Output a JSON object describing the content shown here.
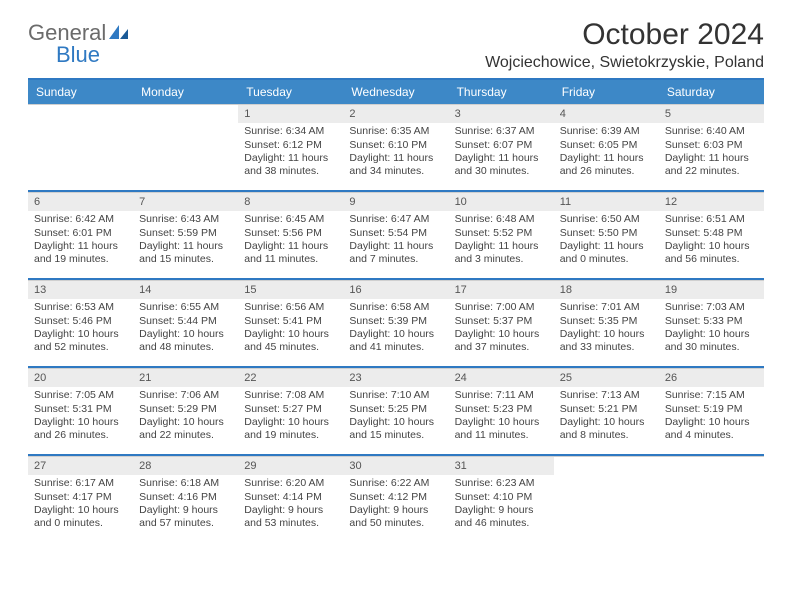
{
  "brand": {
    "general": "General",
    "blue": "Blue"
  },
  "header": {
    "month_title": "October 2024",
    "location": "Wojciechowice, Swietokrzyskie, Poland"
  },
  "colors": {
    "accent": "#3d88c7",
    "divider": "#2f79c2",
    "daynum_bg": "#ececec",
    "text": "#333333"
  },
  "weekdays": [
    "Sunday",
    "Monday",
    "Tuesday",
    "Wednesday",
    "Thursday",
    "Friday",
    "Saturday"
  ],
  "weeks": [
    [
      {
        "blank": true
      },
      {
        "blank": true
      },
      {
        "day": "1",
        "sunrise": "Sunrise: 6:34 AM",
        "sunset": "Sunset: 6:12 PM",
        "daylight": "Daylight: 11 hours and 38 minutes."
      },
      {
        "day": "2",
        "sunrise": "Sunrise: 6:35 AM",
        "sunset": "Sunset: 6:10 PM",
        "daylight": "Daylight: 11 hours and 34 minutes."
      },
      {
        "day": "3",
        "sunrise": "Sunrise: 6:37 AM",
        "sunset": "Sunset: 6:07 PM",
        "daylight": "Daylight: 11 hours and 30 minutes."
      },
      {
        "day": "4",
        "sunrise": "Sunrise: 6:39 AM",
        "sunset": "Sunset: 6:05 PM",
        "daylight": "Daylight: 11 hours and 26 minutes."
      },
      {
        "day": "5",
        "sunrise": "Sunrise: 6:40 AM",
        "sunset": "Sunset: 6:03 PM",
        "daylight": "Daylight: 11 hours and 22 minutes."
      }
    ],
    [
      {
        "day": "6",
        "sunrise": "Sunrise: 6:42 AM",
        "sunset": "Sunset: 6:01 PM",
        "daylight": "Daylight: 11 hours and 19 minutes."
      },
      {
        "day": "7",
        "sunrise": "Sunrise: 6:43 AM",
        "sunset": "Sunset: 5:59 PM",
        "daylight": "Daylight: 11 hours and 15 minutes."
      },
      {
        "day": "8",
        "sunrise": "Sunrise: 6:45 AM",
        "sunset": "Sunset: 5:56 PM",
        "daylight": "Daylight: 11 hours and 11 minutes."
      },
      {
        "day": "9",
        "sunrise": "Sunrise: 6:47 AM",
        "sunset": "Sunset: 5:54 PM",
        "daylight": "Daylight: 11 hours and 7 minutes."
      },
      {
        "day": "10",
        "sunrise": "Sunrise: 6:48 AM",
        "sunset": "Sunset: 5:52 PM",
        "daylight": "Daylight: 11 hours and 3 minutes."
      },
      {
        "day": "11",
        "sunrise": "Sunrise: 6:50 AM",
        "sunset": "Sunset: 5:50 PM",
        "daylight": "Daylight: 11 hours and 0 minutes."
      },
      {
        "day": "12",
        "sunrise": "Sunrise: 6:51 AM",
        "sunset": "Sunset: 5:48 PM",
        "daylight": "Daylight: 10 hours and 56 minutes."
      }
    ],
    [
      {
        "day": "13",
        "sunrise": "Sunrise: 6:53 AM",
        "sunset": "Sunset: 5:46 PM",
        "daylight": "Daylight: 10 hours and 52 minutes."
      },
      {
        "day": "14",
        "sunrise": "Sunrise: 6:55 AM",
        "sunset": "Sunset: 5:44 PM",
        "daylight": "Daylight: 10 hours and 48 minutes."
      },
      {
        "day": "15",
        "sunrise": "Sunrise: 6:56 AM",
        "sunset": "Sunset: 5:41 PM",
        "daylight": "Daylight: 10 hours and 45 minutes."
      },
      {
        "day": "16",
        "sunrise": "Sunrise: 6:58 AM",
        "sunset": "Sunset: 5:39 PM",
        "daylight": "Daylight: 10 hours and 41 minutes."
      },
      {
        "day": "17",
        "sunrise": "Sunrise: 7:00 AM",
        "sunset": "Sunset: 5:37 PM",
        "daylight": "Daylight: 10 hours and 37 minutes."
      },
      {
        "day": "18",
        "sunrise": "Sunrise: 7:01 AM",
        "sunset": "Sunset: 5:35 PM",
        "daylight": "Daylight: 10 hours and 33 minutes."
      },
      {
        "day": "19",
        "sunrise": "Sunrise: 7:03 AM",
        "sunset": "Sunset: 5:33 PM",
        "daylight": "Daylight: 10 hours and 30 minutes."
      }
    ],
    [
      {
        "day": "20",
        "sunrise": "Sunrise: 7:05 AM",
        "sunset": "Sunset: 5:31 PM",
        "daylight": "Daylight: 10 hours and 26 minutes."
      },
      {
        "day": "21",
        "sunrise": "Sunrise: 7:06 AM",
        "sunset": "Sunset: 5:29 PM",
        "daylight": "Daylight: 10 hours and 22 minutes."
      },
      {
        "day": "22",
        "sunrise": "Sunrise: 7:08 AM",
        "sunset": "Sunset: 5:27 PM",
        "daylight": "Daylight: 10 hours and 19 minutes."
      },
      {
        "day": "23",
        "sunrise": "Sunrise: 7:10 AM",
        "sunset": "Sunset: 5:25 PM",
        "daylight": "Daylight: 10 hours and 15 minutes."
      },
      {
        "day": "24",
        "sunrise": "Sunrise: 7:11 AM",
        "sunset": "Sunset: 5:23 PM",
        "daylight": "Daylight: 10 hours and 11 minutes."
      },
      {
        "day": "25",
        "sunrise": "Sunrise: 7:13 AM",
        "sunset": "Sunset: 5:21 PM",
        "daylight": "Daylight: 10 hours and 8 minutes."
      },
      {
        "day": "26",
        "sunrise": "Sunrise: 7:15 AM",
        "sunset": "Sunset: 5:19 PM",
        "daylight": "Daylight: 10 hours and 4 minutes."
      }
    ],
    [
      {
        "day": "27",
        "sunrise": "Sunrise: 6:17 AM",
        "sunset": "Sunset: 4:17 PM",
        "daylight": "Daylight: 10 hours and 0 minutes."
      },
      {
        "day": "28",
        "sunrise": "Sunrise: 6:18 AM",
        "sunset": "Sunset: 4:16 PM",
        "daylight": "Daylight: 9 hours and 57 minutes."
      },
      {
        "day": "29",
        "sunrise": "Sunrise: 6:20 AM",
        "sunset": "Sunset: 4:14 PM",
        "daylight": "Daylight: 9 hours and 53 minutes."
      },
      {
        "day": "30",
        "sunrise": "Sunrise: 6:22 AM",
        "sunset": "Sunset: 4:12 PM",
        "daylight": "Daylight: 9 hours and 50 minutes."
      },
      {
        "day": "31",
        "sunrise": "Sunrise: 6:23 AM",
        "sunset": "Sunset: 4:10 PM",
        "daylight": "Daylight: 9 hours and 46 minutes."
      },
      {
        "blank": true
      },
      {
        "blank": true
      }
    ]
  ]
}
